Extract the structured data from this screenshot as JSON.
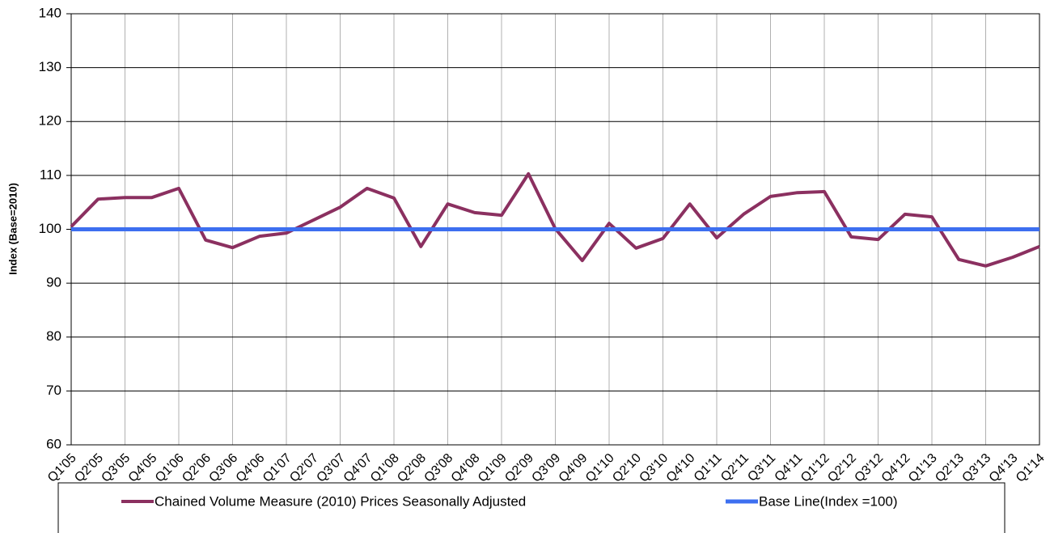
{
  "chart_data": {
    "type": "line",
    "y_label": "Index (Base=2010)",
    "categories": [
      "Q1'05",
      "Q2'05",
      "Q3'05",
      "Q4'05",
      "Q1'06",
      "Q2'06",
      "Q3'06",
      "Q4'06",
      "Q1'07",
      "Q2'07",
      "Q3'07",
      "Q4'07",
      "Q1'08",
      "Q2'08",
      "Q3'08",
      "Q4'08",
      "Q1'09",
      "Q2'09",
      "Q3'09",
      "Q4'09",
      "Q1'10",
      "Q2'10",
      "Q3'10",
      "Q4'10",
      "Q1'11",
      "Q2'11",
      "Q3'11",
      "Q4'11",
      "Q1'12",
      "Q2'12",
      "Q3'12",
      "Q4'12",
      "Q1'13",
      "Q2'13",
      "Q3'13",
      "Q4'13",
      "Q1'14"
    ],
    "series": [
      {
        "name": "Chained Volume Measure (2010) Prices Seasonally Adjusted",
        "color": "#8b3060",
        "values": [
          100.5,
          105.6,
          105.9,
          105.9,
          107.6,
          98.0,
          96.6,
          98.7,
          99.3,
          101.7,
          104.1,
          107.6,
          105.8,
          96.8,
          104.7,
          103.1,
          102.6,
          110.3,
          100.1,
          94.2,
          101.1,
          96.5,
          98.3,
          104.7,
          98.4,
          102.8,
          106.1,
          106.8,
          107.0,
          98.6,
          98.1,
          102.8,
          102.3,
          94.4,
          93.2,
          94.8,
          96.8
        ]
      },
      {
        "name": "Base Line(Index =100)",
        "color": "#3d6ff0",
        "values": [
          100,
          100,
          100,
          100,
          100,
          100,
          100,
          100,
          100,
          100,
          100,
          100,
          100,
          100,
          100,
          100,
          100,
          100,
          100,
          100,
          100,
          100,
          100,
          100,
          100,
          100,
          100,
          100,
          100,
          100,
          100,
          100,
          100,
          100,
          100,
          100,
          100
        ]
      }
    ],
    "ylim": [
      60,
      140
    ],
    "yticks": [
      60,
      70,
      80,
      90,
      100,
      110,
      120,
      130,
      140
    ],
    "grid": true
  }
}
